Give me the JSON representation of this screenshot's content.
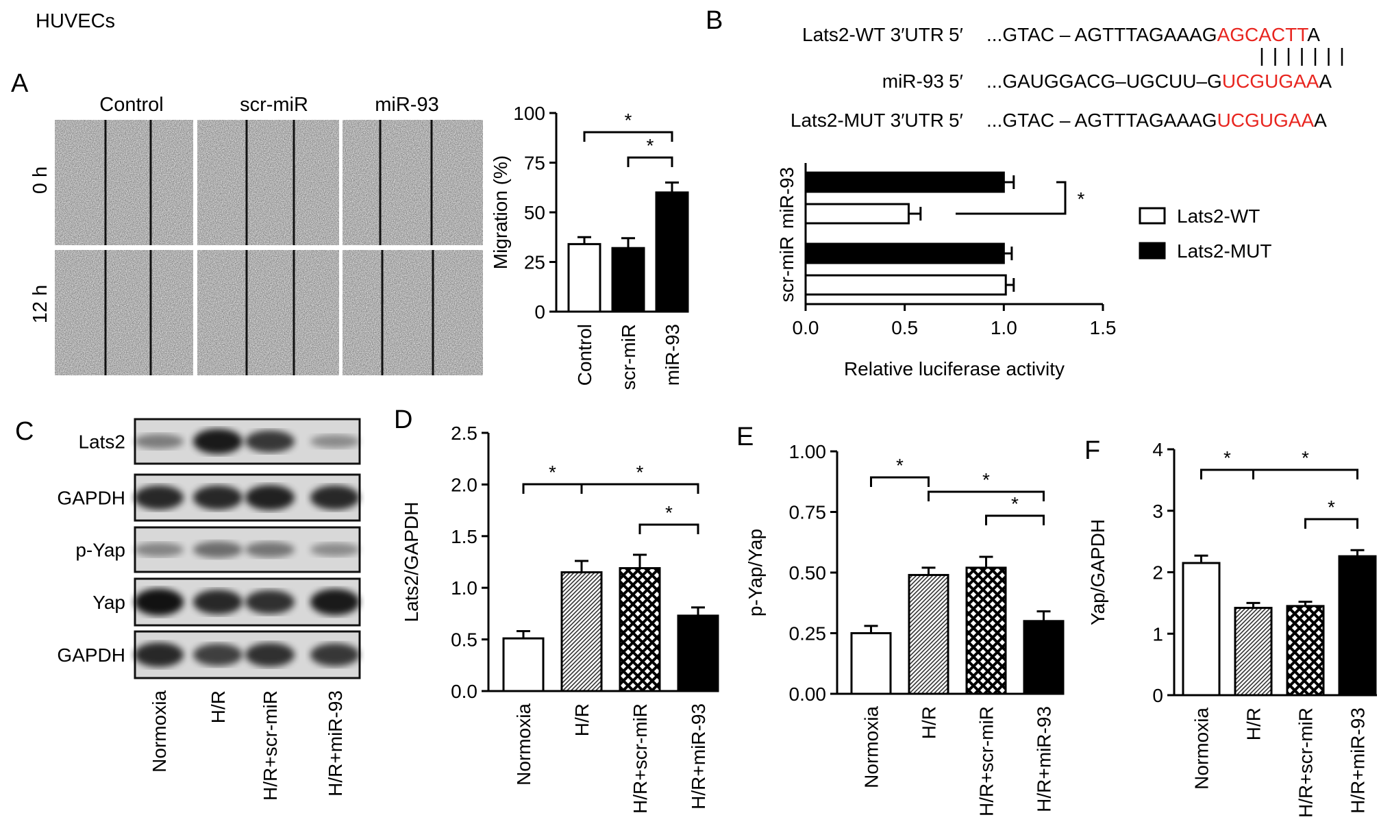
{
  "figure": {
    "header": "HUVECs",
    "panels": {
      "A": "A",
      "B": "B",
      "C": "C",
      "D": "D",
      "E": "E",
      "F": "F"
    },
    "colors": {
      "red": "#e8251f",
      "black": "#000000",
      "white": "#ffffff",
      "hatch": "#555555"
    }
  },
  "panel_a": {
    "columns": [
      "Control",
      "scr-miR",
      "miR-93"
    ],
    "rows": [
      "0 h",
      "12 h"
    ]
  },
  "panel_b_seq": {
    "rows": [
      {
        "label": "Lats2-WT 3′UTR",
        "end": "5′",
        "seq": "...GTAC – AGTTTAGAAAG",
        "hl": "AGCACTT",
        "tail": "A"
      },
      {
        "label": "miR-93",
        "end": "5′",
        "seq": "...GAUGGACG–UGCUU–G",
        "hl": "UCGUGAA",
        "tail": "A"
      },
      {
        "label": "Lats2-MUT 3′UTR",
        "end": "5′",
        "seq": "...GTAC – AGTTTAGAAAG",
        "hl": "UCGUGAA",
        "tail": "A"
      }
    ],
    "pair_lines": 7
  },
  "panel_c": {
    "bands": [
      "Lats2",
      "GAPDH",
      "p-Yap",
      "Yap",
      "GAPDH"
    ],
    "lanes": [
      "Normoxia",
      "H/R",
      "H/R+scr-miR",
      "H/R+miR-93"
    ]
  },
  "chart_data": [
    {
      "id": "migration",
      "type": "bar",
      "categories": [
        "Control",
        "scr-miR",
        "miR-93"
      ],
      "values": [
        34,
        32,
        60
      ],
      "errors": [
        3.5,
        5,
        5
      ],
      "fills": [
        "white",
        "black",
        "black"
      ],
      "ylabel": "Migration (%)",
      "ylim": [
        0,
        100
      ],
      "yticks": [
        0,
        25,
        50,
        75,
        100
      ],
      "significance": [
        {
          "from": 0,
          "to": 2,
          "label": "*"
        },
        {
          "from": 1,
          "to": 2,
          "label": "*"
        }
      ]
    },
    {
      "id": "luciferase",
      "type": "bar",
      "orientation": "horizontal",
      "groups": [
        "scr-miR",
        "miR-93"
      ],
      "series": [
        {
          "name": "Lats2-WT",
          "values": [
            1.01,
            0.52
          ],
          "errors": [
            0.04,
            0.06
          ]
        },
        {
          "name": "Lats2-MUT",
          "values": [
            1.0,
            1.0
          ],
          "errors": [
            0.04,
            0.05
          ]
        }
      ],
      "xlabel": "Relative luciferase activity",
      "xlim": [
        0,
        1.5
      ],
      "xticks": [
        "0.0",
        "0.5",
        "1.0",
        "1.5"
      ],
      "legend": [
        "Lats2-WT",
        "Lats2-MUT"
      ],
      "significance": [
        {
          "label": "*"
        }
      ]
    },
    {
      "id": "lats2",
      "type": "bar",
      "categories": [
        "Normoxia",
        "H/R",
        "H/R+scr-miR",
        "H/R+miR-93"
      ],
      "values": [
        0.51,
        1.15,
        1.19,
        0.73
      ],
      "errors": [
        0.07,
        0.11,
        0.13,
        0.08
      ],
      "fills": [
        "white",
        "hatch",
        "cross",
        "black"
      ],
      "ylabel": "Lats2/GAPDH",
      "ylim": [
        0,
        2.5
      ],
      "yticks": [
        "0.0",
        "0.5",
        "1.0",
        "1.5",
        "2.0",
        "2.5"
      ],
      "significance": [
        {
          "from": 0,
          "to": 1,
          "label": "*"
        },
        {
          "from": 1,
          "to": 3,
          "label": "*"
        },
        {
          "from": 2,
          "to": 3,
          "label": "*"
        }
      ]
    },
    {
      "id": "pyap",
      "type": "bar",
      "categories": [
        "Normoxia",
        "H/R",
        "H/R+scr-miR",
        "H/R+miR-93"
      ],
      "values": [
        0.25,
        0.49,
        0.52,
        0.3
      ],
      "errors": [
        0.03,
        0.03,
        0.045,
        0.04
      ],
      "fills": [
        "white",
        "hatch",
        "cross",
        "black"
      ],
      "ylabel": "p-Yap/Yap",
      "ylim": [
        0,
        1
      ],
      "yticks": [
        "0.00",
        "0.25",
        "0.50",
        "0.75",
        "1.00"
      ],
      "significance": [
        {
          "from": 0,
          "to": 1,
          "label": "*"
        },
        {
          "from": 1,
          "to": 3,
          "label": "*"
        },
        {
          "from": 2,
          "to": 3,
          "label": "*"
        }
      ]
    },
    {
      "id": "yap",
      "type": "bar",
      "categories": [
        "Normoxia",
        "H/R",
        "H/R+scr-miR",
        "H/R+miR-93"
      ],
      "values": [
        2.15,
        1.42,
        1.45,
        2.26
      ],
      "errors": [
        0.12,
        0.08,
        0.07,
        0.1
      ],
      "fills": [
        "white",
        "hatch",
        "cross",
        "black"
      ],
      "ylabel": "Yap/GAPDH",
      "ylim": [
        0,
        4
      ],
      "yticks": [
        "0",
        "1",
        "2",
        "3",
        "4"
      ],
      "significance": [
        {
          "from": 0,
          "to": 1,
          "label": "*"
        },
        {
          "from": 1,
          "to": 3,
          "label": "*"
        },
        {
          "from": 2,
          "to": 3,
          "label": "*"
        }
      ]
    }
  ]
}
